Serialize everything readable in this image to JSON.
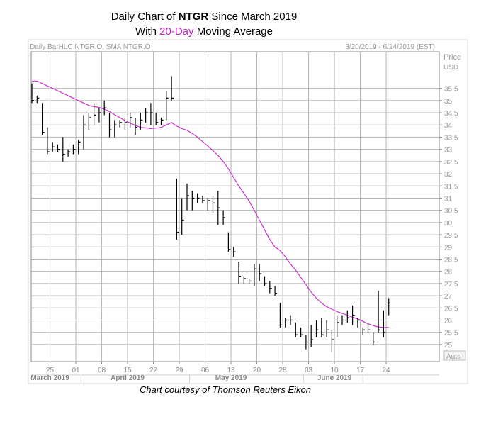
{
  "title": {
    "prefix": "Daily Chart of ",
    "ticker": "NTGR",
    "suffix": " Since March 2019",
    "line2_prefix": "With ",
    "line2_highlight": "20-Day",
    "line2_suffix": " Moving Average"
  },
  "header_left": "Daily BarHLC NTGR.O, SMA NTGR.O",
  "header_right": "3/20/2019 - 6/24/2019 (EST)",
  "price_label": "Price",
  "currency_label": "USD",
  "auto_label": "Auto",
  "credit": "Chart courtesy of Thomson Reuters Eikon",
  "colors": {
    "bars": "#000000",
    "sma": "#cc33cc",
    "grid": "#b4b4b4",
    "highlight": "#c020c0"
  },
  "chart_data": {
    "type": "bar",
    "style": "HLC",
    "ticker": "NTGR.O",
    "ylim": [
      24.3,
      37.0
    ],
    "y_ticks": [
      25,
      25.5,
      26,
      26.5,
      27,
      27.5,
      28,
      28.5,
      29,
      29.5,
      30,
      30.5,
      31,
      31.5,
      32,
      32.5,
      33,
      33.5,
      34,
      34.5,
      35,
      35.5
    ],
    "y_tick_labels": [
      "25",
      "25.5",
      "26",
      "26.5",
      "27",
      "27.5",
      "28",
      "28.5",
      "29",
      "29.5",
      "30",
      "30.5",
      "31",
      "31.5",
      "32",
      "32.5",
      "33",
      "33.5",
      "34",
      "34.5",
      "35",
      "35.5"
    ],
    "x_tick_labels": [
      "25",
      "01",
      "08",
      "15",
      "22",
      "29",
      "06",
      "13",
      "20",
      "28",
      "03",
      "10",
      "17",
      "24"
    ],
    "x_tick_positions": [
      3.5,
      8.5,
      13.5,
      18.5,
      23.5,
      28.5,
      33.5,
      38.5,
      43.5,
      48.5,
      53.5,
      58.5,
      63.5,
      68.5
    ],
    "month_labels": [
      {
        "label": "March 2019",
        "position": 3.5
      },
      {
        "label": "April 2019",
        "position": 18.5
      },
      {
        "label": "May 2019",
        "position": 38.5
      },
      {
        "label": "June 2019",
        "position": 58.5
      }
    ],
    "bars": [
      [
        35.7,
        34.9,
        35.0
      ],
      [
        35.2,
        34.9,
        35.1
      ],
      [
        34.9,
        33.6,
        33.7
      ],
      [
        33.9,
        32.8,
        32.9
      ],
      [
        33.3,
        32.9,
        33.1
      ],
      [
        33.2,
        32.9,
        33.0
      ],
      [
        33.5,
        32.5,
        32.8
      ],
      [
        33.0,
        32.7,
        32.9
      ],
      [
        33.2,
        32.8,
        33.0
      ],
      [
        33.4,
        32.8,
        33.3
      ],
      [
        34.4,
        33.0,
        34.0
      ],
      [
        34.5,
        33.8,
        34.3
      ],
      [
        34.9,
        34.0,
        34.4
      ],
      [
        34.7,
        34.1,
        34.5
      ],
      [
        35.0,
        34.4,
        34.7
      ],
      [
        34.5,
        33.5,
        33.8
      ],
      [
        34.2,
        33.5,
        34.0
      ],
      [
        34.2,
        33.9,
        34.1
      ],
      [
        34.3,
        33.8,
        34.1
      ],
      [
        34.5,
        33.9,
        34.3
      ],
      [
        34.3,
        33.6,
        33.9
      ],
      [
        34.5,
        33.8,
        34.2
      ],
      [
        34.7,
        34.1,
        34.5
      ],
      [
        34.9,
        34.0,
        34.5
      ],
      [
        34.5,
        34.0,
        34.1
      ],
      [
        34.3,
        34.0,
        34.2
      ],
      [
        35.4,
        34.2,
        35.1
      ],
      [
        36.0,
        35.0,
        35.1
      ],
      [
        31.8,
        29.3,
        29.6
      ],
      [
        31.0,
        29.5,
        30.1
      ],
      [
        31.6,
        30.5,
        31.1
      ],
      [
        31.3,
        30.5,
        31.0
      ],
      [
        31.2,
        30.8,
        31.0
      ],
      [
        31.1,
        30.8,
        30.9
      ],
      [
        31.0,
        30.5,
        30.9
      ],
      [
        31.1,
        30.4,
        30.8
      ],
      [
        31.3,
        29.9,
        30.6
      ],
      [
        30.5,
        29.9,
        30.2
      ],
      [
        29.6,
        28.8,
        28.9
      ],
      [
        29.0,
        28.6,
        28.8
      ],
      [
        28.4,
        27.5,
        27.8
      ],
      [
        27.8,
        27.5,
        27.7
      ],
      [
        27.7,
        27.5,
        27.6
      ],
      [
        28.3,
        27.4,
        28.1
      ],
      [
        28.3,
        27.6,
        27.9
      ],
      [
        27.8,
        27.4,
        27.5
      ],
      [
        27.6,
        27.1,
        27.3
      ],
      [
        27.4,
        27.0,
        27.1
      ],
      [
        26.7,
        25.7,
        25.8
      ],
      [
        26.1,
        25.7,
        26.0
      ],
      [
        26.2,
        25.8,
        26.0
      ],
      [
        25.9,
        25.3,
        25.4
      ],
      [
        25.7,
        25.3,
        25.4
      ],
      [
        25.4,
        24.8,
        25.1
      ],
      [
        25.8,
        24.9,
        25.2
      ],
      [
        26.0,
        25.3,
        25.6
      ],
      [
        26.1,
        25.3,
        25.4
      ],
      [
        26.0,
        25.3,
        25.6
      ],
      [
        25.6,
        24.7,
        25.2
      ],
      [
        26.2,
        25.3,
        25.9
      ],
      [
        26.2,
        25.8,
        26.0
      ],
      [
        26.4,
        25.9,
        26.1
      ],
      [
        26.6,
        25.8,
        26.2
      ],
      [
        26.1,
        25.7,
        26.0
      ],
      [
        25.7,
        25.4,
        25.6
      ],
      [
        25.9,
        25.5,
        25.6
      ],
      [
        25.5,
        25.0,
        25.1
      ],
      [
        27.2,
        25.5,
        25.6
      ],
      [
        26.4,
        25.3,
        25.5
      ],
      [
        26.9,
        26.2,
        26.7
      ]
    ],
    "sma_period": 20,
    "sma": [
      [
        0,
        35.8
      ],
      [
        1,
        35.8
      ],
      [
        2,
        35.7
      ],
      [
        3,
        35.6
      ],
      [
        4,
        35.5
      ],
      [
        5,
        35.4
      ],
      [
        6,
        35.3
      ],
      [
        7,
        35.2
      ],
      [
        8,
        35.1
      ],
      [
        9,
        35.0
      ],
      [
        10,
        34.9
      ],
      [
        11,
        34.8
      ],
      [
        12,
        34.75
      ],
      [
        13,
        34.72
      ],
      [
        14,
        34.65
      ],
      [
        15,
        34.55
      ],
      [
        16,
        34.42
      ],
      [
        17,
        34.3
      ],
      [
        18,
        34.18
      ],
      [
        19,
        34.08
      ],
      [
        20,
        33.98
      ],
      [
        21,
        33.9
      ],
      [
        22,
        33.88
      ],
      [
        23,
        33.85
      ],
      [
        24,
        33.87
      ],
      [
        25,
        33.9
      ],
      [
        26,
        34.0
      ],
      [
        27,
        34.1
      ],
      [
        28,
        33.95
      ],
      [
        29,
        33.85
      ],
      [
        30,
        33.78
      ],
      [
        31,
        33.65
      ],
      [
        32,
        33.5
      ],
      [
        33,
        33.32
      ],
      [
        34,
        33.14
      ],
      [
        35,
        32.95
      ],
      [
        36,
        32.75
      ],
      [
        37,
        32.5
      ],
      [
        38,
        32.2
      ],
      [
        39,
        31.85
      ],
      [
        40,
        31.5
      ],
      [
        41,
        31.2
      ],
      [
        42,
        30.88
      ],
      [
        43,
        30.5
      ],
      [
        44,
        30.1
      ],
      [
        45,
        29.7
      ],
      [
        46,
        29.3
      ],
      [
        47,
        29.0
      ],
      [
        48,
        28.85
      ],
      [
        49,
        28.6
      ],
      [
        50,
        28.3
      ],
      [
        51,
        28.05
      ],
      [
        52,
        27.75
      ],
      [
        53,
        27.45
      ],
      [
        54,
        27.15
      ],
      [
        55,
        26.9
      ],
      [
        56,
        26.7
      ],
      [
        57,
        26.55
      ],
      [
        58,
        26.45
      ],
      [
        59,
        26.35
      ],
      [
        60,
        26.28
      ],
      [
        61,
        26.2
      ],
      [
        62,
        26.12
      ],
      [
        63,
        26.05
      ],
      [
        64,
        25.95
      ],
      [
        65,
        25.85
      ],
      [
        66,
        25.78
      ],
      [
        67,
        25.72
      ],
      [
        68,
        25.7
      ],
      [
        69,
        25.7
      ]
    ]
  }
}
